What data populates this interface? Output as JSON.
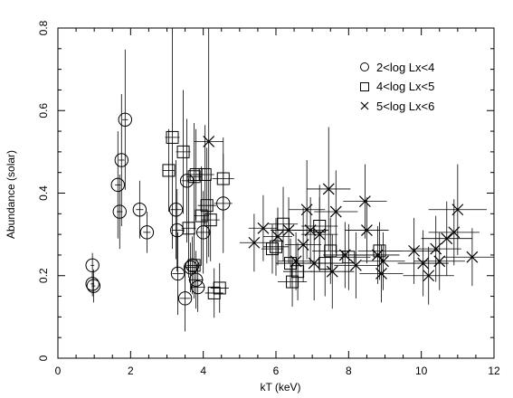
{
  "chart_data": {
    "type": "scatter",
    "xlabel": "kT (keV)",
    "ylabel": "Abundance (solar)",
    "xlim": [
      0,
      12
    ],
    "ylim": [
      0,
      0.8
    ],
    "x_ticks": [
      0,
      2,
      4,
      6,
      8,
      10,
      12
    ],
    "y_ticks": [
      0,
      0.2,
      0.4,
      0.6,
      0.8
    ],
    "x_tick_labels": [
      "0",
      "2",
      "4",
      "6",
      "8",
      "10",
      "12"
    ],
    "y_tick_labels": [
      "0",
      "0.2",
      "0.4",
      "0.6",
      "0.8"
    ],
    "grid": false,
    "legend_position": "top-right",
    "colors": {
      "axis": "#000000",
      "series": "#000000"
    },
    "series": [
      {
        "name": "2<log Lx<4",
        "marker": "circle",
        "points": [
          {
            "x": 0.95,
            "y": 0.225,
            "yerr": 0.03,
            "xerr": 0.05
          },
          {
            "x": 0.95,
            "y": 0.18,
            "yerr": 0.03,
            "xerr": 0.05
          },
          {
            "x": 0.98,
            "y": 0.175,
            "yerr": 0.04,
            "xerr": 0.05
          },
          {
            "x": 1.65,
            "y": 0.42,
            "yerr": 0.13,
            "xerr": 0.08
          },
          {
            "x": 1.7,
            "y": 0.355,
            "yerr": 0.09,
            "xerr": 0.08
          },
          {
            "x": 1.75,
            "y": 0.48,
            "yerr": 0.16,
            "xerr": 0.08
          },
          {
            "x": 1.85,
            "y": 0.578,
            "yerr": 0.17,
            "xerr": 0.08
          },
          {
            "x": 2.25,
            "y": 0.36,
            "yerr": 0.07,
            "xerr": 0.1
          },
          {
            "x": 2.45,
            "y": 0.305,
            "yerr": 0.05,
            "xerr": 0.1
          },
          {
            "x": 3.25,
            "y": 0.36,
            "yerr": 0.12,
            "xerr": 0.15
          },
          {
            "x": 3.28,
            "y": 0.31,
            "yerr": 0.1,
            "xerr": 0.15
          },
          {
            "x": 3.3,
            "y": 0.205,
            "yerr": 0.1,
            "xerr": 0.15
          },
          {
            "x": 3.5,
            "y": 0.145,
            "yerr": 0.08,
            "xerr": 0.15
          },
          {
            "x": 3.55,
            "y": 0.43,
            "yerr": 0.15,
            "xerr": 0.15
          },
          {
            "x": 3.65,
            "y": 0.22,
            "yerr": 0.06,
            "xerr": 0.15
          },
          {
            "x": 3.7,
            "y": 0.225,
            "yerr": 0.07,
            "xerr": 0.15
          },
          {
            "x": 3.8,
            "y": 0.19,
            "yerr": 0.07,
            "xerr": 0.2
          },
          {
            "x": 3.85,
            "y": 0.172,
            "yerr": 0.06,
            "xerr": 0.2
          },
          {
            "x": 4.0,
            "y": 0.305,
            "yerr": 0.1,
            "xerr": 0.2
          },
          {
            "x": 4.55,
            "y": 0.375,
            "yerr": 0.12,
            "xerr": 0.25
          }
        ]
      },
      {
        "name": "4<log Lx<5",
        "marker": "square",
        "points": [
          {
            "x": 3.05,
            "y": 0.455,
            "yerr": 0.1,
            "xerr": 0.15
          },
          {
            "x": 3.15,
            "y": 0.535,
            "yerr": 0.27,
            "xerr": 0.2
          },
          {
            "x": 3.45,
            "y": 0.5,
            "yerr": 0.15,
            "xerr": 0.2
          },
          {
            "x": 3.6,
            "y": 0.315,
            "yerr": 0.12,
            "xerr": 0.2
          },
          {
            "x": 3.75,
            "y": 0.44,
            "yerr": 0.13,
            "xerr": 0.2
          },
          {
            "x": 3.8,
            "y": 0.445,
            "yerr": 0.11,
            "xerr": 0.2
          },
          {
            "x": 3.75,
            "y": 0.225,
            "yerr": 0.08,
            "xerr": 0.2
          },
          {
            "x": 3.95,
            "y": 0.345,
            "yerr": 0.12,
            "xerr": 0.2
          },
          {
            "x": 4.05,
            "y": 0.445,
            "yerr": 0.12,
            "xerr": 0.25
          },
          {
            "x": 4.1,
            "y": 0.37,
            "yerr": 0.14,
            "xerr": 0.25
          },
          {
            "x": 4.2,
            "y": 0.335,
            "yerr": 0.1,
            "xerr": 0.25
          },
          {
            "x": 4.3,
            "y": 0.158,
            "yerr": 0.06,
            "xerr": 0.25
          },
          {
            "x": 4.45,
            "y": 0.17,
            "yerr": 0.06,
            "xerr": 0.25
          },
          {
            "x": 4.55,
            "y": 0.435,
            "yerr": 0.1,
            "xerr": 0.3
          },
          {
            "x": 5.9,
            "y": 0.265,
            "yerr": 0.06,
            "xerr": 0.3
          },
          {
            "x": 6.0,
            "y": 0.27,
            "yerr": 0.07,
            "xerr": 0.35
          },
          {
            "x": 6.2,
            "y": 0.325,
            "yerr": 0.09,
            "xerr": 0.4
          },
          {
            "x": 6.4,
            "y": 0.23,
            "yerr": 0.06,
            "xerr": 0.4
          },
          {
            "x": 6.45,
            "y": 0.185,
            "yerr": 0.06,
            "xerr": 0.4
          },
          {
            "x": 6.6,
            "y": 0.21,
            "yerr": 0.07,
            "xerr": 0.4
          },
          {
            "x": 7.2,
            "y": 0.32,
            "yerr": 0.1,
            "xerr": 0.5
          },
          {
            "x": 7.35,
            "y": 0.23,
            "yerr": 0.08,
            "xerr": 0.5
          },
          {
            "x": 7.5,
            "y": 0.26,
            "yerr": 0.08,
            "xerr": 0.5
          },
          {
            "x": 8.0,
            "y": 0.245,
            "yerr": 0.08,
            "xerr": 0.6
          },
          {
            "x": 8.85,
            "y": 0.26,
            "yerr": 0.07,
            "xerr": 0.6
          }
        ]
      },
      {
        "name": "5<log Lx<6",
        "marker": "cross",
        "points": [
          {
            "x": 4.15,
            "y": 0.525,
            "yerr": 0.28,
            "xerr": 0.4
          },
          {
            "x": 5.4,
            "y": 0.28,
            "yerr": 0.07,
            "xerr": 0.4
          },
          {
            "x": 5.65,
            "y": 0.315,
            "yerr": 0.08,
            "xerr": 0.4
          },
          {
            "x": 6.05,
            "y": 0.295,
            "yerr": 0.07,
            "xerr": 0.4
          },
          {
            "x": 6.35,
            "y": 0.31,
            "yerr": 0.08,
            "xerr": 0.5
          },
          {
            "x": 6.55,
            "y": 0.235,
            "yerr": 0.07,
            "xerr": 0.5
          },
          {
            "x": 6.75,
            "y": 0.275,
            "yerr": 0.09,
            "xerr": 0.5
          },
          {
            "x": 6.85,
            "y": 0.36,
            "yerr": 0.12,
            "xerr": 0.5
          },
          {
            "x": 6.95,
            "y": 0.31,
            "yerr": 0.08,
            "xerr": 0.5
          },
          {
            "x": 7.05,
            "y": 0.23,
            "yerr": 0.09,
            "xerr": 0.5
          },
          {
            "x": 7.2,
            "y": 0.3,
            "yerr": 0.09,
            "xerr": 0.5
          },
          {
            "x": 7.45,
            "y": 0.41,
            "yerr": 0.15,
            "xerr": 0.6
          },
          {
            "x": 7.55,
            "y": 0.21,
            "yerr": 0.09,
            "xerr": 0.6
          },
          {
            "x": 7.65,
            "y": 0.355,
            "yerr": 0.1,
            "xerr": 0.6
          },
          {
            "x": 7.9,
            "y": 0.25,
            "yerr": 0.08,
            "xerr": 0.6
          },
          {
            "x": 8.2,
            "y": 0.225,
            "yerr": 0.08,
            "xerr": 0.6
          },
          {
            "x": 8.45,
            "y": 0.38,
            "yerr": 0.09,
            "xerr": 0.6
          },
          {
            "x": 8.5,
            "y": 0.31,
            "yerr": 0.08,
            "xerr": 0.6
          },
          {
            "x": 8.8,
            "y": 0.25,
            "yerr": 0.07,
            "xerr": 0.6
          },
          {
            "x": 8.95,
            "y": 0.235,
            "yerr": 0.07,
            "xerr": 0.6
          },
          {
            "x": 8.9,
            "y": 0.205,
            "yerr": 0.07,
            "xerr": 0.6
          },
          {
            "x": 9.8,
            "y": 0.26,
            "yerr": 0.08,
            "xerr": 0.7
          },
          {
            "x": 10.05,
            "y": 0.23,
            "yerr": 0.08,
            "xerr": 0.7
          },
          {
            "x": 10.2,
            "y": 0.2,
            "yerr": 0.07,
            "xerr": 0.7
          },
          {
            "x": 10.4,
            "y": 0.265,
            "yerr": 0.08,
            "xerr": 0.7
          },
          {
            "x": 10.5,
            "y": 0.235,
            "yerr": 0.07,
            "xerr": 0.7
          },
          {
            "x": 10.7,
            "y": 0.29,
            "yerr": 0.09,
            "xerr": 0.7
          },
          {
            "x": 10.9,
            "y": 0.305,
            "yerr": 0.08,
            "xerr": 0.7
          },
          {
            "x": 11.0,
            "y": 0.36,
            "yerr": 0.11,
            "xerr": 0.8
          },
          {
            "x": 11.4,
            "y": 0.245,
            "yerr": 0.07,
            "xerr": 0.8
          }
        ]
      }
    ]
  }
}
